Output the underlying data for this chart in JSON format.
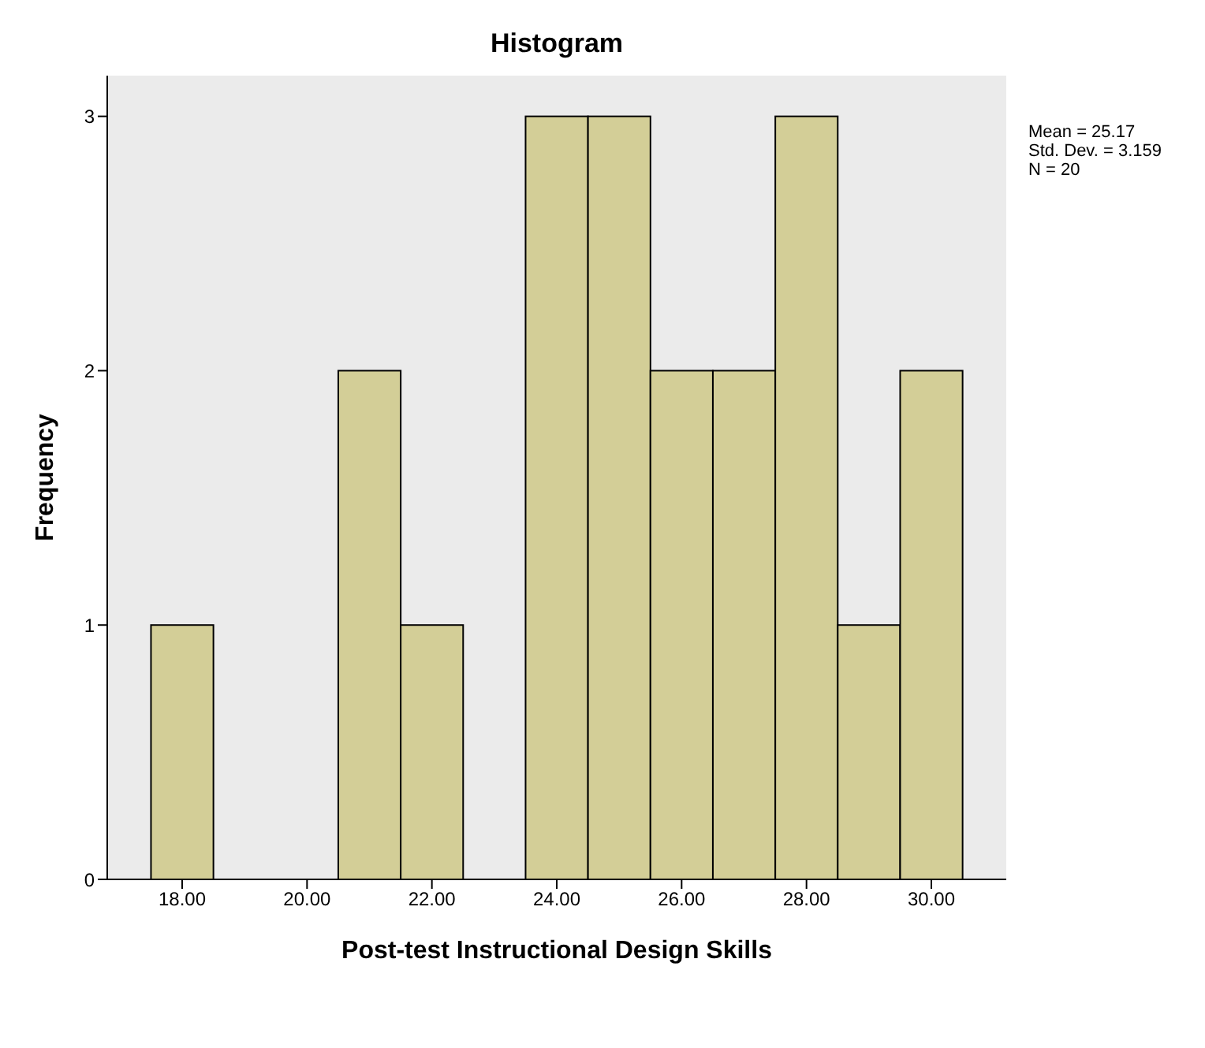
{
  "chart_data": {
    "type": "histogram",
    "title": "Histogram",
    "xlabel": "Post-test Instructional Design Skills",
    "ylabel": "Frequency",
    "bins": [
      17.5,
      18.5,
      19.5,
      20.5,
      21.5,
      22.5,
      23.5,
      24.5,
      25.5,
      26.5,
      27.5,
      28.5,
      29.5,
      30.5
    ],
    "values": [
      1,
      0,
      0,
      2,
      1,
      0,
      3,
      3,
      2,
      2,
      3,
      1,
      2
    ],
    "color": "#d3ce97",
    "xlim": [
      16.8,
      31.2
    ],
    "xticks": [
      {
        "value": 18,
        "label": "18.00"
      },
      {
        "value": 20,
        "label": "20.00"
      },
      {
        "value": 22,
        "label": "22.00"
      },
      {
        "value": 24,
        "label": "24.00"
      },
      {
        "value": 26,
        "label": "26.00"
      },
      {
        "value": 28,
        "label": "28.00"
      },
      {
        "value": 30,
        "label": "30.00"
      }
    ],
    "ylim": [
      0,
      3.16
    ],
    "yticks": [
      0,
      1,
      2,
      3
    ],
    "annotations": [
      "Mean = 25.17",
      "Std. Dev. = 3.159",
      "N = 20"
    ]
  }
}
